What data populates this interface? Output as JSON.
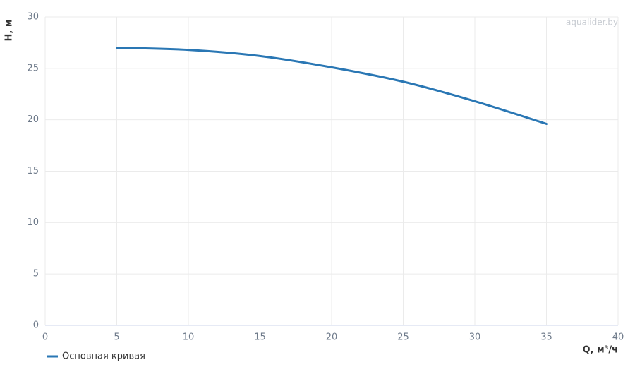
{
  "chart_data": {
    "type": "line",
    "x_label": "Q, м³/ч",
    "y_label": "H, м",
    "watermark": "aqualider.by",
    "x": [
      5,
      10,
      15,
      20,
      25,
      30,
      35
    ],
    "series": [
      {
        "name": "Основная кривая",
        "color": "#2a77b4",
        "values": [
          27.0,
          26.8,
          26.2,
          25.1,
          23.7,
          21.8,
          19.6
        ]
      }
    ],
    "xlim": [
      0,
      40
    ],
    "xticks": [
      0,
      5,
      10,
      15,
      20,
      25,
      30,
      35,
      40
    ],
    "ylim": [
      0,
      30
    ],
    "yticks": [
      0,
      5,
      10,
      15,
      20,
      25,
      30
    ],
    "grid": true,
    "legend": "bottom-left"
  }
}
